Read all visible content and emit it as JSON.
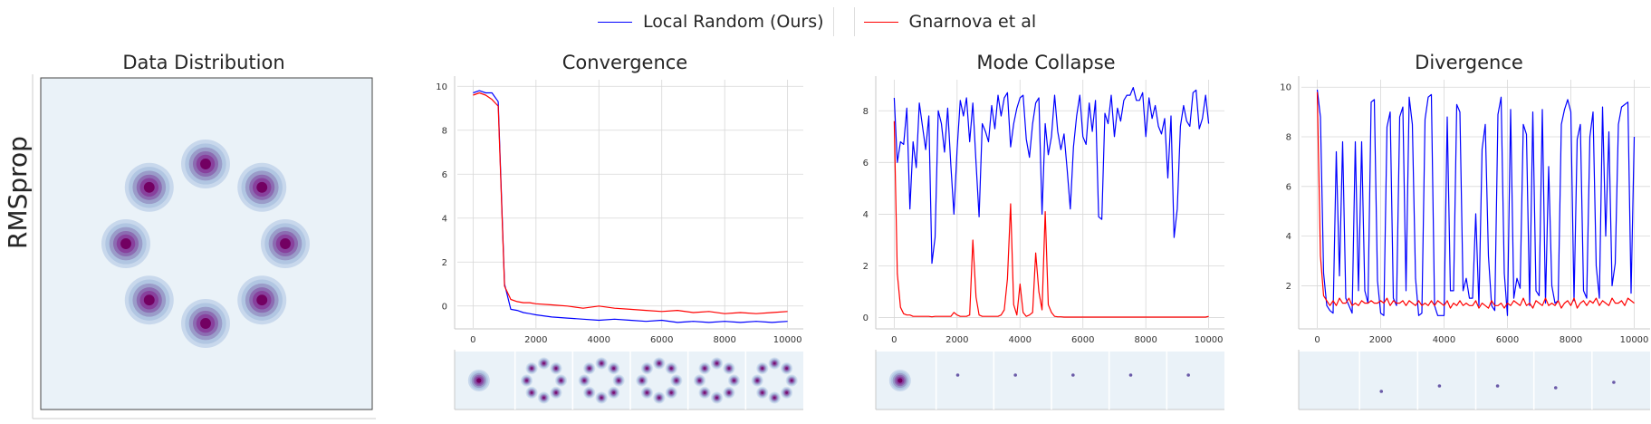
{
  "legend": {
    "ours": "Local Random (Ours)",
    "baseline": "Gnarnova et al",
    "ours_color": "#0000ff",
    "baseline_color": "#ff0000"
  },
  "row_label": "RMSprop",
  "colors": {
    "panel_bg": "#eaf2f8",
    "grid": "#d7d7d7",
    "density_dark": "#730062"
  },
  "chart_data": [
    {
      "type": "heatmap",
      "title": "Data Distribution",
      "description": "8 Gaussian modes arranged on a ring",
      "mode_count": 8
    },
    {
      "type": "line",
      "title": "Convergence",
      "x": [
        0,
        200,
        400,
        600,
        800,
        1000,
        1200,
        1400,
        1600,
        1800,
        2000,
        2500,
        3000,
        3500,
        4000,
        4500,
        5000,
        5500,
        6000,
        6500,
        7000,
        7500,
        8000,
        8500,
        9000,
        9500,
        10000
      ],
      "series": [
        {
          "name": "Local Random (Ours)",
          "values": [
            9.7,
            9.8,
            9.7,
            9.7,
            9.3,
            1.0,
            -0.15,
            -0.2,
            -0.3,
            -0.35,
            -0.4,
            -0.5,
            -0.55,
            -0.6,
            -0.65,
            -0.6,
            -0.65,
            -0.7,
            -0.65,
            -0.75,
            -0.7,
            -0.75,
            -0.7,
            -0.75,
            -0.7,
            -0.75,
            -0.7
          ]
        },
        {
          "name": "Gnarnova et al",
          "values": [
            9.6,
            9.7,
            9.6,
            9.4,
            9.1,
            0.9,
            0.3,
            0.2,
            0.15,
            0.15,
            0.1,
            0.05,
            0.0,
            -0.1,
            0.0,
            -0.1,
            -0.15,
            -0.2,
            -0.25,
            -0.2,
            -0.3,
            -0.25,
            -0.35,
            -0.3,
            -0.35,
            -0.3,
            -0.25
          ]
        }
      ],
      "xlim": [
        -500,
        10500
      ],
      "ylim": [
        -1.0,
        10.3
      ],
      "xticks": [
        0,
        2000,
        4000,
        6000,
        8000,
        10000
      ],
      "yticks": [
        0,
        2,
        4,
        6,
        8,
        10
      ],
      "grid": true,
      "snapshots": [
        "single blob",
        "ring",
        "ring",
        "ring",
        "ring",
        "ring"
      ]
    },
    {
      "type": "line",
      "title": "Mode Collapse",
      "x": [
        0,
        100,
        200,
        300,
        400,
        500,
        600,
        700,
        800,
        900,
        1000,
        1100,
        1200,
        1300,
        1400,
        1500,
        1600,
        1700,
        1800,
        1900,
        2000,
        2100,
        2200,
        2300,
        2400,
        2500,
        2600,
        2700,
        2800,
        2900,
        3000,
        3100,
        3200,
        3300,
        3400,
        3500,
        3600,
        3700,
        3800,
        3900,
        4000,
        4100,
        4200,
        4300,
        4400,
        4500,
        4600,
        4700,
        4800,
        4900,
        5000,
        5100,
        5200,
        5300,
        5400,
        5500,
        5600,
        5700,
        5800,
        5900,
        6000,
        6100,
        6200,
        6300,
        6400,
        6500,
        6600,
        6700,
        6800,
        6900,
        7000,
        7100,
        7200,
        7300,
        7400,
        7500,
        7600,
        7700,
        7800,
        7900,
        8000,
        8100,
        8200,
        8300,
        8400,
        8500,
        8600,
        8700,
        8800,
        8900,
        9000,
        9100,
        9200,
        9300,
        9400,
        9500,
        9600,
        9700,
        9800,
        9900,
        10000
      ],
      "series": [
        {
          "name": "Local Random (Ours)",
          "values": [
            8.5,
            6.0,
            6.8,
            6.7,
            8.1,
            4.2,
            6.8,
            5.8,
            8.3,
            7.4,
            6.5,
            7.8,
            2.1,
            3.1,
            8.0,
            7.5,
            6.4,
            8.1,
            5.9,
            4.0,
            6.5,
            8.4,
            7.8,
            8.5,
            6.8,
            8.3,
            6.0,
            3.9,
            7.5,
            7.2,
            6.8,
            8.2,
            7.3,
            8.6,
            7.8,
            8.5,
            8.7,
            6.6,
            7.5,
            8.1,
            8.5,
            8.6,
            6.9,
            6.2,
            7.5,
            8.3,
            8.5,
            4.0,
            7.5,
            6.3,
            7.0,
            8.6,
            7.2,
            6.5,
            7.1,
            5.7,
            4.2,
            6.6,
            7.8,
            8.6,
            7.0,
            6.7,
            8.3,
            7.2,
            8.4,
            3.9,
            3.8,
            7.9,
            7.5,
            8.6,
            7.0,
            8.1,
            7.6,
            8.4,
            8.6,
            8.6,
            8.9,
            8.4,
            8.4,
            8.7,
            7.0,
            8.5,
            7.7,
            8.2,
            7.4,
            7.1,
            7.7,
            5.4,
            7.8,
            3.1,
            4.2,
            7.4,
            8.2,
            7.6,
            7.4,
            8.7,
            8.8,
            7.3,
            7.7,
            8.6,
            7.5
          ]
        },
        {
          "name": "Gnarnova et al",
          "values": [
            7.6,
            1.7,
            0.4,
            0.15,
            0.1,
            0.1,
            0.05,
            0.05,
            0.05,
            0.05,
            0.05,
            0.05,
            0.03,
            0.05,
            0.05,
            0.05,
            0.05,
            0.05,
            0.05,
            0.2,
            0.1,
            0.05,
            0.05,
            0.05,
            0.1,
            3.0,
            0.8,
            0.1,
            0.05,
            0.05,
            0.05,
            0.05,
            0.05,
            0.05,
            0.1,
            0.3,
            1.5,
            4.4,
            0.5,
            0.1,
            1.3,
            0.2,
            0.05,
            0.1,
            0.2,
            2.5,
            1.0,
            0.3,
            4.1,
            0.5,
            0.2,
            0.05,
            0.03,
            0.03,
            0.02,
            0.02,
            0.02,
            0.02,
            0.02,
            0.02,
            0.02,
            0.02,
            0.02,
            0.02,
            0.02,
            0.02,
            0.02,
            0.02,
            0.02,
            0.02,
            0.02,
            0.02,
            0.02,
            0.02,
            0.02,
            0.02,
            0.02,
            0.02,
            0.02,
            0.02,
            0.02,
            0.02,
            0.02,
            0.02,
            0.02,
            0.02,
            0.02,
            0.02,
            0.02,
            0.02,
            0.02,
            0.02,
            0.02,
            0.02,
            0.02,
            0.02,
            0.02,
            0.02,
            0.02,
            0.02,
            0.05
          ]
        }
      ],
      "xlim": [
        -500,
        10500
      ],
      "ylim": [
        -0.4,
        9.2
      ],
      "xticks": [
        0,
        2000,
        4000,
        6000,
        8000,
        10000
      ],
      "yticks": [
        0,
        2,
        4,
        6,
        8
      ],
      "grid": true,
      "snapshots": [
        "single blob",
        "dot",
        "dot",
        "dot",
        "dot",
        "dot"
      ]
    },
    {
      "type": "line",
      "title": "Divergence",
      "x": [
        0,
        100,
        200,
        300,
        400,
        500,
        600,
        700,
        800,
        900,
        1000,
        1100,
        1200,
        1300,
        1400,
        1500,
        1600,
        1700,
        1800,
        1900,
        2000,
        2100,
        2200,
        2300,
        2400,
        2500,
        2600,
        2700,
        2800,
        2900,
        3000,
        3100,
        3200,
        3300,
        3400,
        3500,
        3600,
        3700,
        3800,
        3900,
        4000,
        4100,
        4200,
        4300,
        4400,
        4500,
        4600,
        4700,
        4800,
        4900,
        5000,
        5100,
        5200,
        5300,
        5400,
        5500,
        5600,
        5700,
        5800,
        5900,
        6000,
        6100,
        6200,
        6300,
        6400,
        6500,
        6600,
        6700,
        6800,
        6900,
        7000,
        7100,
        7200,
        7300,
        7400,
        7500,
        7600,
        7700,
        7800,
        7900,
        8000,
        8100,
        8200,
        8300,
        8400,
        8500,
        8600,
        8700,
        8800,
        8900,
        9000,
        9100,
        9200,
        9300,
        9400,
        9500,
        9600,
        9700,
        9800,
        9900,
        10000
      ],
      "series": [
        {
          "name": "Local Random (Ours)",
          "values": [
            9.9,
            8.8,
            2.5,
            1.2,
            1.0,
            0.9,
            7.4,
            2.4,
            7.8,
            1.5,
            1.2,
            0.9,
            7.8,
            1.8,
            7.8,
            1.8,
            1.3,
            9.4,
            9.5,
            2.2,
            0.9,
            0.8,
            8.4,
            9.0,
            1.5,
            1.2,
            8.8,
            9.2,
            1.8,
            9.6,
            8.5,
            2.3,
            0.8,
            0.9,
            8.7,
            9.6,
            9.7,
            1.2,
            0.8,
            0.8,
            0.8,
            8.8,
            1.8,
            1.8,
            9.3,
            9.0,
            1.8,
            2.3,
            1.5,
            1.5,
            4.9,
            1.2,
            7.5,
            8.5,
            3.2,
            1.2,
            1.0,
            8.9,
            9.6,
            2.5,
            0.8,
            9.1,
            1.5,
            2.3,
            1.9,
            8.5,
            8.1,
            1.2,
            9.0,
            1.8,
            1.6,
            9.1,
            1.3,
            6.8,
            2.0,
            1.3,
            1.4,
            8.5,
            9.1,
            9.5,
            9.0,
            1.4,
            7.9,
            8.5,
            1.8,
            1.5,
            8.0,
            9.0,
            2.8,
            1.5,
            9.2,
            4.0,
            8.2,
            2.0,
            2.9,
            8.5,
            9.2,
            9.3,
            9.4,
            1.7,
            8.0
          ]
        },
        {
          "name": "Gnarnova et al",
          "values": [
            9.8,
            3.2,
            1.6,
            1.4,
            1.2,
            1.4,
            1.2,
            1.5,
            1.3,
            1.3,
            1.5,
            1.2,
            1.3,
            1.2,
            1.4,
            1.3,
            1.3,
            1.4,
            1.3,
            1.3,
            1.4,
            1.3,
            1.5,
            1.2,
            1.4,
            1.3,
            1.3,
            1.4,
            1.2,
            1.4,
            1.3,
            1.2,
            1.4,
            1.2,
            1.3,
            1.2,
            1.4,
            1.2,
            1.4,
            1.3,
            1.2,
            1.4,
            1.1,
            1.3,
            1.2,
            1.4,
            1.2,
            1.3,
            1.2,
            1.2,
            1.4,
            1.1,
            1.3,
            1.2,
            1.1,
            1.4,
            1.2,
            1.2,
            1.3,
            1.1,
            1.3,
            1.2,
            1.4,
            1.3,
            1.2,
            1.5,
            1.2,
            1.3,
            1.1,
            1.4,
            1.3,
            1.2,
            1.5,
            1.2,
            1.3,
            1.2,
            1.4,
            1.1,
            1.3,
            1.4,
            1.2,
            1.5,
            1.1,
            1.3,
            1.4,
            1.2,
            1.4,
            1.3,
            1.5,
            1.2,
            1.4,
            1.3,
            1.2,
            1.5,
            1.3,
            1.3,
            1.4,
            1.2,
            1.5,
            1.4,
            1.3
          ]
        }
      ],
      "xlim": [
        -500,
        10500
      ],
      "ylim": [
        0.3,
        10.3
      ],
      "xticks": [
        0,
        2000,
        4000,
        6000,
        8000,
        10000
      ],
      "yticks": [
        2,
        4,
        6,
        8,
        10
      ],
      "grid": true,
      "snapshots": [
        "empty",
        "dot",
        "dot",
        "dot",
        "dot",
        "dot"
      ]
    }
  ]
}
